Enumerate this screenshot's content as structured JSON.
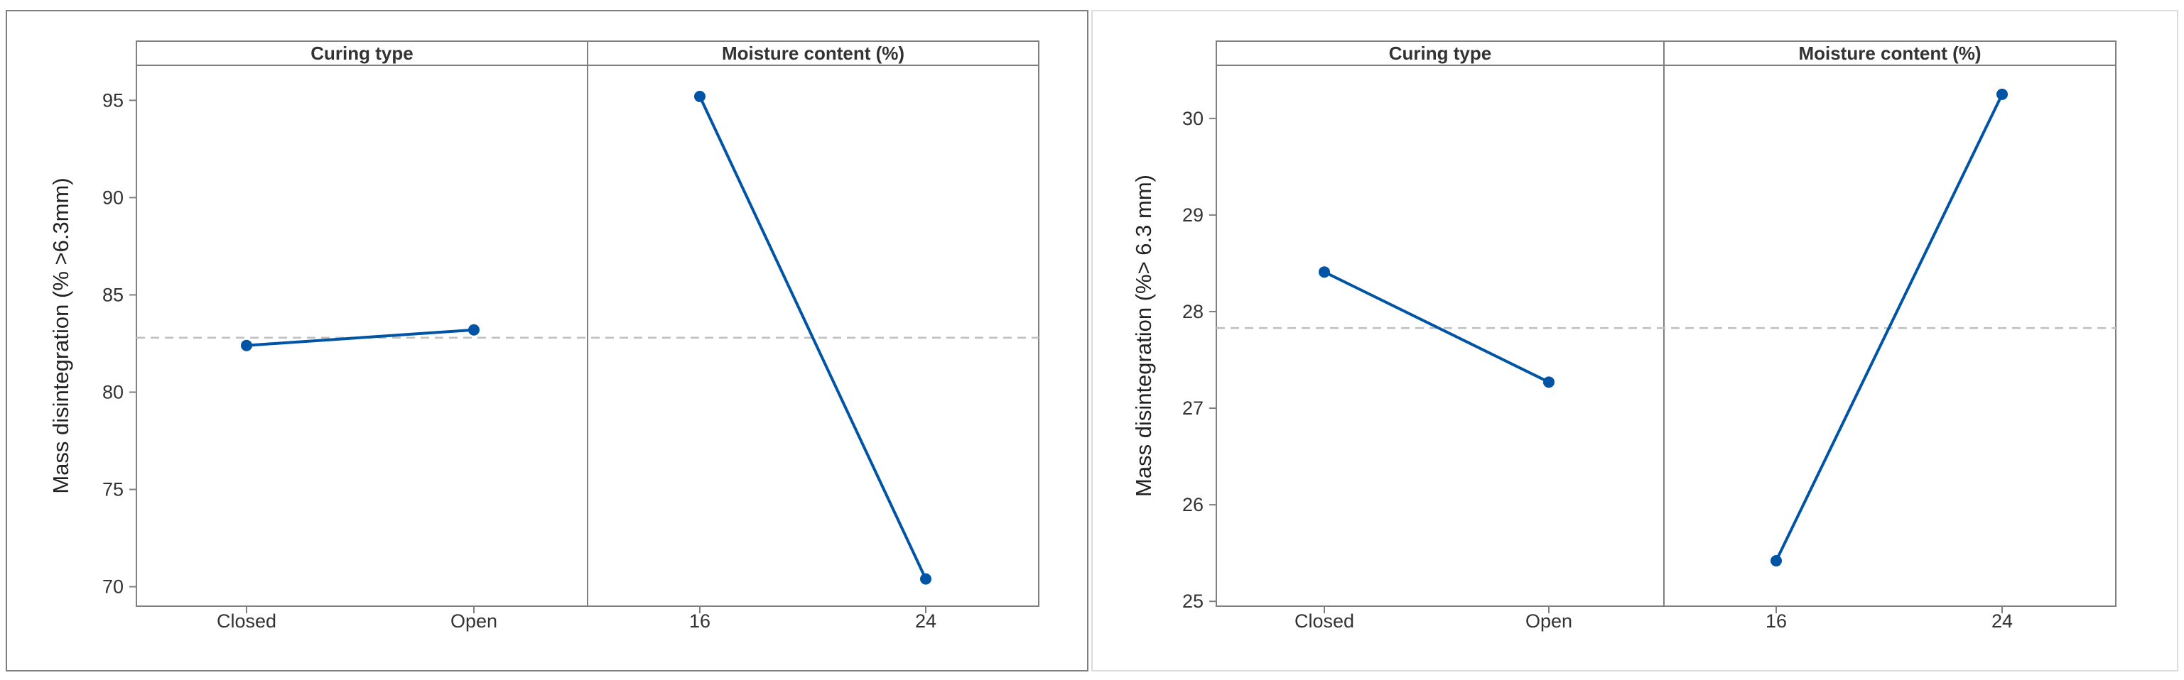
{
  "colors": {
    "series": "#0054a6",
    "reference_line": "#bfbfbf",
    "axis": "#7f7f7f",
    "strip_fill": "#ffffff"
  },
  "chart_data": [
    {
      "type": "line",
      "subtype": "main-effects-plot",
      "ylabel": "Mass disintegration (% >6.3mm)",
      "ylim": [
        69,
        96.8
      ],
      "yticks": [
        70,
        75,
        80,
        85,
        90,
        95
      ],
      "reference_mean": 82.8,
      "grid": false,
      "facets": [
        {
          "title": "Curing type",
          "categories": [
            "Closed",
            "Open"
          ],
          "values": [
            82.4,
            83.2
          ]
        },
        {
          "title": "Moisture content (%)",
          "categories": [
            "16",
            "24"
          ],
          "values": [
            95.2,
            70.4
          ]
        }
      ]
    },
    {
      "type": "line",
      "subtype": "main-effects-plot",
      "ylabel": "Mass disintegration (%> 6.3 mm)",
      "ylim": [
        24.95,
        30.55
      ],
      "yticks": [
        25,
        26,
        27,
        28,
        29,
        30
      ],
      "reference_mean": 27.83,
      "grid": false,
      "facets": [
        {
          "title": "Curing type",
          "categories": [
            "Closed",
            "Open"
          ],
          "values": [
            28.41,
            27.27
          ]
        },
        {
          "title": "Moisture content (%)",
          "categories": [
            "16",
            "24"
          ],
          "values": [
            25.42,
            30.25
          ]
        }
      ]
    }
  ]
}
